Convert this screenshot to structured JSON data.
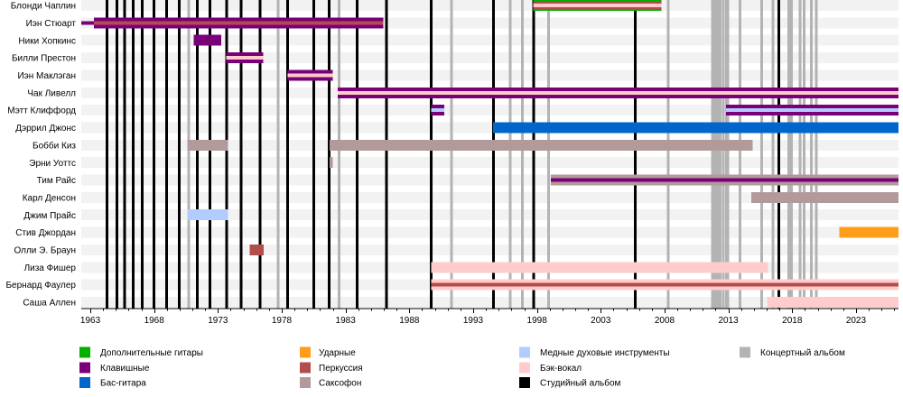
{
  "chart_data": {
    "type": "bar",
    "subtype": "timeline",
    "orientation": "horizontal",
    "title": "",
    "xlabel": "",
    "ylabel": "",
    "xlim": [
      1962.29,
      2026.33
    ],
    "x_ticks": [
      1963,
      1968,
      1973,
      1978,
      1983,
      1988,
      1993,
      1998,
      2003,
      2008,
      2013,
      2018,
      2023
    ],
    "minor_tick_step": 1,
    "grid": false,
    "legend_position": "bottom",
    "colors": {
      "guitars": "#00b000",
      "keyboards": "#790079",
      "bass": "#0066cc",
      "drums": "#ff9c1a",
      "percussion": "#b34d4d",
      "saxophone": "#b39a9a",
      "brass": "#b3ccff",
      "vocals": "#ffcccc",
      "studio": "#000000",
      "live": "#b3b3b3",
      "band": "#f2f2f2"
    },
    "members": [
      {
        "name": "Блонди Чаплин",
        "periods": [
          {
            "start": 1997.7,
            "end": 2007.75,
            "roles": [
              "guitars",
              "percussion",
              "vocals"
            ]
          }
        ]
      },
      {
        "name": "Иэн Стюарт",
        "periods": [
          {
            "start": 1962.29,
            "end": 1963.28,
            "roles": [
              "keyboards"
            ],
            "thin": true
          },
          {
            "start": 1963.28,
            "end": 1985.95,
            "roles": [
              "keyboards",
              "percussion"
            ]
          }
        ]
      },
      {
        "name": "Ники Хопкинс",
        "periods": [
          {
            "start": 1971.1,
            "end": 1973.25,
            "roles": [
              "keyboards"
            ]
          }
        ]
      },
      {
        "name": "Билли Престон",
        "periods": [
          {
            "start": 1973.65,
            "end": 1976.55,
            "roles": [
              "keyboards",
              "vocals"
            ]
          }
        ]
      },
      {
        "name": "Иэн Маклэган",
        "periods": [
          {
            "start": 1978.45,
            "end": 1982.0,
            "roles": [
              "keyboards",
              "vocals"
            ]
          }
        ]
      },
      {
        "name": "Чак Ливелл",
        "periods": [
          {
            "start": 1982.4,
            "end": 2026.33,
            "roles": [
              "keyboards",
              "vocals"
            ]
          }
        ]
      },
      {
        "name": "Мэтт Клиффорд",
        "periods": [
          {
            "start": 1989.7,
            "end": 1990.75,
            "roles": [
              "keyboards",
              "brass"
            ]
          },
          {
            "start": 2012.8,
            "end": 2026.33,
            "roles": [
              "keyboards",
              "brass"
            ]
          }
        ]
      },
      {
        "name": "Дэррил Джонс",
        "periods": [
          {
            "start": 1994.55,
            "end": 2026.33,
            "roles": [
              "bass"
            ]
          }
        ]
      },
      {
        "name": "Бобби Киз",
        "periods": [
          {
            "start": 1970.6,
            "end": 1973.8,
            "roles": [
              "saxophone"
            ]
          },
          {
            "start": 1981.75,
            "end": 2014.9,
            "roles": [
              "saxophone"
            ]
          }
        ]
      },
      {
        "name": "Эрни Уоттс",
        "periods": [
          {
            "start": 1981.75,
            "end": 1982.0,
            "roles": [
              "saxophone"
            ]
          }
        ]
      },
      {
        "name": "Тим Райс",
        "periods": [
          {
            "start": 1999.1,
            "end": 2026.33,
            "roles": [
              "saxophone",
              "keyboards"
            ]
          }
        ]
      },
      {
        "name": "Карл Денсон",
        "periods": [
          {
            "start": 2014.8,
            "end": 2026.33,
            "roles": [
              "saxophone"
            ]
          }
        ]
      },
      {
        "name": "Джим Прайс",
        "periods": [
          {
            "start": 1970.6,
            "end": 1973.8,
            "roles": [
              "brass"
            ]
          }
        ]
      },
      {
        "name": "Стив Джордан",
        "periods": [
          {
            "start": 2021.7,
            "end": 2026.33,
            "roles": [
              "drums"
            ]
          }
        ]
      },
      {
        "name": "Олли Э. Браун",
        "periods": [
          {
            "start": 1975.5,
            "end": 1976.6,
            "roles": [
              "percussion"
            ]
          }
        ]
      },
      {
        "name": "Лиза Фишер",
        "periods": [
          {
            "start": 1989.7,
            "end": 2016.1,
            "roles": [
              "vocals"
            ]
          }
        ]
      },
      {
        "name": "Бернард Фаулер",
        "periods": [
          {
            "start": 1989.7,
            "end": 2026.33,
            "roles": [
              "vocals",
              "percussion"
            ]
          }
        ]
      },
      {
        "name": "Саша Аллен",
        "periods": [
          {
            "start": 2016.05,
            "end": 2026.33,
            "roles": [
              "vocals"
            ]
          }
        ]
      }
    ],
    "studio_albums": [
      1964.3,
      1965.1,
      1965.7,
      1966.35,
      1967.05,
      1968.0,
      1968.97,
      1969.96,
      1971.37,
      1972.36,
      1973.7,
      1974.8,
      1976.3,
      1978.45,
      1980.5,
      1981.7,
      1983.9,
      1986.2,
      1989.7,
      1994.6,
      1997.75,
      2005.7,
      2016.95
    ],
    "live_albums": [
      1970.7,
      1977.7,
      1982.5,
      1991.3,
      1995.9,
      1996.85,
      1998.9,
      2008.3,
      2011.75,
      2011.95,
      2012.15,
      2012.35,
      2012.6,
      2012.85,
      2012.95,
      2013.9,
      2015.6,
      2016.5,
      2017.75,
      2017.95,
      2018.6,
      2018.95,
      2019.5,
      2019.9
    ],
    "legend": [
      {
        "key": "guitars",
        "label": "Дополнительные гитары"
      },
      {
        "key": "keyboards",
        "label": "Клавишные"
      },
      {
        "key": "bass",
        "label": "Бас-гитара"
      },
      {
        "key": "drums",
        "label": "Ударные"
      },
      {
        "key": "percussion",
        "label": "Перкуссия"
      },
      {
        "key": "saxophone",
        "label": "Саксофон"
      },
      {
        "key": "brass",
        "label": "Медные духовые инструменты"
      },
      {
        "key": "vocals",
        "label": "Бэк-вокал"
      },
      {
        "key": "studio",
        "label": "Студийный альбом"
      },
      {
        "key": "live",
        "label": "Концертный альбом"
      }
    ]
  }
}
